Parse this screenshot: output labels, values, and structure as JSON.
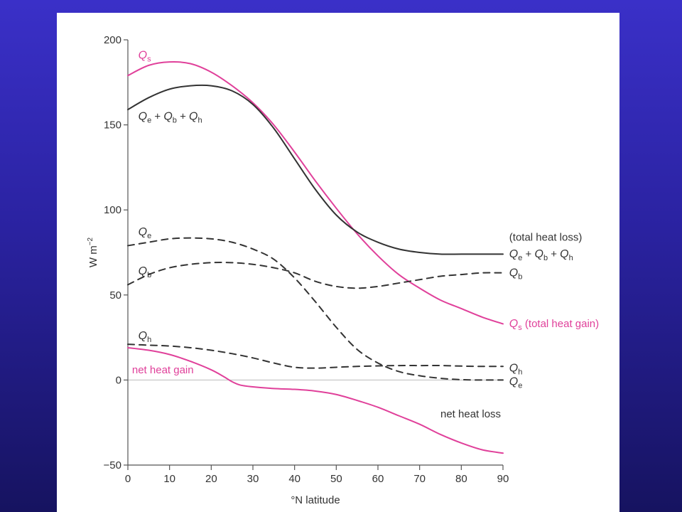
{
  "chart_data": {
    "type": "line",
    "xlabel": "°N latitude",
    "ylabel": "W m",
    "ylabel_sup": "−2",
    "xlim": [
      0,
      90
    ],
    "ylim": [
      -50,
      200
    ],
    "xticks": [
      0,
      10,
      20,
      30,
      40,
      50,
      60,
      70,
      80,
      90
    ],
    "yticks": [
      -50,
      0,
      50,
      100,
      150,
      200
    ],
    "grid": false,
    "colors": {
      "pink": "#e0409a",
      "dark": "#333333",
      "axis": "#555555",
      "zero": "#bbbbbb"
    },
    "series": [
      {
        "name": "Qs",
        "color": "#e0409a",
        "dash": false,
        "x": [
          0,
          5,
          10,
          15,
          20,
          25,
          30,
          35,
          40,
          45,
          50,
          55,
          60,
          65,
          70,
          75,
          80,
          85,
          90
        ],
        "y": [
          179,
          185,
          187,
          186,
          181,
          173,
          163,
          150,
          134,
          117,
          101,
          86,
          73,
          62,
          54,
          47,
          42,
          37,
          33
        ]
      },
      {
        "name": "Qe + Qb + Qh",
        "color": "#333333",
        "dash": false,
        "x": [
          0,
          5,
          10,
          15,
          20,
          25,
          30,
          35,
          40,
          45,
          50,
          55,
          60,
          65,
          70,
          75,
          80,
          85,
          90
        ],
        "y": [
          159,
          166,
          171,
          173,
          173,
          170,
          162,
          148,
          130,
          112,
          97,
          87,
          81,
          77,
          75,
          74,
          74,
          74,
          74
        ]
      },
      {
        "name": "Qe",
        "color": "#333333",
        "dash": true,
        "x": [
          0,
          5,
          10,
          15,
          20,
          25,
          30,
          35,
          40,
          45,
          50,
          55,
          60,
          65,
          70,
          75,
          80,
          85,
          90
        ],
        "y": [
          79,
          81,
          83,
          83.5,
          83,
          81,
          77,
          71,
          60,
          46,
          31,
          18,
          10,
          5,
          2.5,
          1,
          0.2,
          0,
          0
        ]
      },
      {
        "name": "Qb",
        "color": "#333333",
        "dash": true,
        "x": [
          0,
          5,
          10,
          15,
          20,
          25,
          30,
          35,
          40,
          45,
          50,
          55,
          60,
          65,
          70,
          75,
          80,
          85,
          90
        ],
        "y": [
          56,
          62,
          66,
          68,
          69,
          69,
          68,
          66,
          63,
          58,
          55,
          54,
          55,
          57,
          59,
          61,
          62,
          63,
          63
        ]
      },
      {
        "name": "Qh",
        "color": "#333333",
        "dash": true,
        "x": [
          0,
          5,
          10,
          15,
          20,
          25,
          30,
          35,
          40,
          45,
          50,
          55,
          60,
          65,
          70,
          75,
          80,
          85,
          90
        ],
        "y": [
          21,
          20.5,
          20,
          19,
          17.5,
          15.5,
          13,
          10,
          7.5,
          7,
          7.5,
          8,
          8.3,
          8.5,
          8.5,
          8.5,
          8.2,
          8,
          8
        ]
      },
      {
        "name": "net heat gain / loss",
        "color": "#e0409a",
        "dash": false,
        "x": [
          0,
          5,
          10,
          15,
          20,
          23,
          25,
          27,
          30,
          35,
          40,
          45,
          50,
          55,
          60,
          65,
          70,
          75,
          80,
          85,
          90
        ],
        "y": [
          19,
          17.5,
          15,
          11,
          6,
          2,
          -1,
          -3,
          -4,
          -5,
          -5.5,
          -6.5,
          -8.5,
          -12,
          -16,
          -21,
          -26,
          -32,
          -37,
          -41,
          -43
        ]
      }
    ],
    "annotations": [
      {
        "id": "qs-left",
        "main": "Q",
        "sub": "s",
        "after": "",
        "color": "#e0409a",
        "x": 2.5,
        "y": 189
      },
      {
        "id": "qsum-left",
        "parts": [
          "Q",
          "e",
          " + ",
          "Q",
          "b",
          " + ",
          "Q",
          "h"
        ],
        "color": "#333333",
        "x": 2.5,
        "y": 153
      },
      {
        "id": "qe-left",
        "main": "Q",
        "sub": "e",
        "after": "",
        "color": "#333333",
        "x": 2.5,
        "y": 85
      },
      {
        "id": "qb-left",
        "main": "Q",
        "sub": "b",
        "after": "",
        "color": "#333333",
        "x": 2.5,
        "y": 62
      },
      {
        "id": "qh-left",
        "main": "Q",
        "sub": "h",
        "after": "",
        "color": "#333333",
        "x": 2.5,
        "y": 24
      },
      {
        "id": "net-gain",
        "text": "net heat gain",
        "color": "#e0409a",
        "x": 1,
        "y": 4
      },
      {
        "id": "total-loss",
        "text": "(total heat loss)",
        "color": "#333333",
        "x": 91.5,
        "y": 82
      },
      {
        "id": "qsum-right",
        "parts": [
          "Q",
          "e",
          " + ",
          "Q",
          "b",
          " + ",
          "Q",
          "h"
        ],
        "color": "#333333",
        "x": 91.5,
        "y": 72
      },
      {
        "id": "qb-right",
        "main": "Q",
        "sub": "b",
        "after": "",
        "color": "#333333",
        "x": 91.5,
        "y": 61
      },
      {
        "id": "qs-right",
        "main": "Q",
        "sub": "s",
        "after": " (total heat gain)",
        "color": "#e0409a",
        "x": 91.5,
        "y": 31
      },
      {
        "id": "qh-right",
        "main": "Q",
        "sub": "h",
        "after": "",
        "color": "#333333",
        "x": 91.5,
        "y": 5
      },
      {
        "id": "qe-right",
        "main": "Q",
        "sub": "e",
        "after": "",
        "color": "#333333",
        "x": 91.5,
        "y": -3
      },
      {
        "id": "net-loss",
        "text": "net heat loss",
        "color": "#333333",
        "x": 75,
        "y": -22
      }
    ]
  }
}
